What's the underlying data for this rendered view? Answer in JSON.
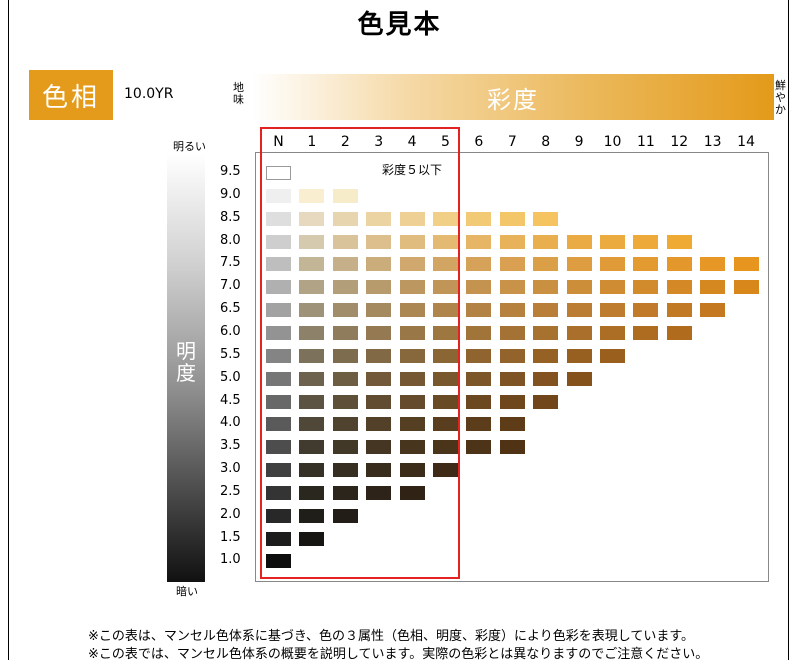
{
  "title": "色見本",
  "hue": {
    "label": "色相",
    "value": "10.0YR",
    "color": "#e49a1a"
  },
  "chroma": {
    "label": "彩度",
    "dull": "地味",
    "vivid": "鮮やか"
  },
  "value": {
    "label": "明度",
    "bright": "明るい",
    "dark": "暗い"
  },
  "highlight": {
    "label": "彩度５以下",
    "color": "#e52222"
  },
  "columns": [
    "N",
    "1",
    "2",
    "3",
    "4",
    "5",
    "6",
    "7",
    "8",
    "9",
    "10",
    "11",
    "12",
    "13",
    "14"
  ],
  "rows": [
    {
      "label": "9.5",
      "chips": [
        "#ffffff"
      ]
    },
    {
      "label": "9.0",
      "chips": [
        "#efefef",
        "#faeed0",
        "#f7ecca"
      ]
    },
    {
      "label": "8.5",
      "chips": [
        "#dedede",
        "#e6d9bf",
        "#e7d5b0",
        "#ebd3a2",
        "#eed094",
        "#f1cf87",
        "#f2ca76",
        "#f3c66a",
        "#f5c35f"
      ]
    },
    {
      "label": "8.0",
      "chips": [
        "#cecece",
        "#d6caae",
        "#d8c39b",
        "#dcbf8c",
        "#e0bc7e",
        "#e4b972",
        "#e6b566",
        "#e8b25a",
        "#e9ae4e",
        "#eaaa44",
        "#ecab3f",
        "#eda93a",
        "#eeaa33"
      ]
    },
    {
      "label": "7.5",
      "chips": [
        "#bebebe",
        "#c2b696",
        "#c5b08a",
        "#cbad7c",
        "#d0a86e",
        "#d3a563",
        "#d6a259",
        "#d8a050",
        "#db9f48",
        "#de9d40",
        "#e09b38",
        "#e29a31",
        "#e4982b",
        "#e69726",
        "#e7951f"
      ]
    },
    {
      "label": "7.0",
      "chips": [
        "#b0b0b0",
        "#b0a386",
        "#b39e7a",
        "#b89b6c",
        "#bd9760",
        "#c19557",
        "#c59350",
        "#c89248",
        "#ca9041",
        "#cd8e39",
        "#cf8c33",
        "#d28b2c",
        "#d48926",
        "#d68820",
        "#d8871a"
      ]
    },
    {
      "label": "6.5",
      "chips": [
        "#a2a2a2",
        "#9e9278",
        "#a18d6a",
        "#a68a5f",
        "#ab8754",
        "#af854b",
        "#b38345",
        "#b6813f",
        "#b97f39",
        "#bb7d33",
        "#be7c2e",
        "#c07a29",
        "#c27924",
        "#c4781f"
      ]
    },
    {
      "label": "6.0",
      "chips": [
        "#939393",
        "#8d8169",
        "#8f7c5c",
        "#947952",
        "#997747",
        "#9d7640",
        "#a1743a",
        "#a47234",
        "#a7712f",
        "#aa6f2a",
        "#ac6e25",
        "#ae6c21",
        "#b06b1d"
      ]
    },
    {
      "label": "5.5",
      "chips": [
        "#848484",
        "#7c715b",
        "#7e6c4f",
        "#826945",
        "#87673c",
        "#8b6635",
        "#8f642f",
        "#92632a",
        "#956125",
        "#976020",
        "#9a5f1c"
      ]
    },
    {
      "label": "5.0",
      "chips": [
        "#767676",
        "#6c624e",
        "#6d5e43",
        "#71593a",
        "#755833",
        "#79572d",
        "#7c5528",
        "#7f5424",
        "#825320",
        "#85521b"
      ]
    },
    {
      "label": "4.5",
      "chips": [
        "#686868",
        "#5d5343",
        "#5e4f39",
        "#614c31",
        "#654b2b",
        "#684a25",
        "#6b4820",
        "#6e471c",
        "#71461a"
      ]
    },
    {
      "label": "4.0",
      "chips": [
        "#5a5a5a",
        "#4f4738",
        "#4f4330",
        "#524029",
        "#553f23",
        "#583e1f",
        "#5b3d1b",
        "#5e3c18"
      ]
    },
    {
      "label": "3.5",
      "chips": [
        "#4d4d4d",
        "#413b2f",
        "#423828",
        "#443622",
        "#47351e",
        "#4a341a",
        "#4d3317",
        "#503215"
      ]
    },
    {
      "label": "3.0",
      "chips": [
        "#404040",
        "#353126",
        "#362e21",
        "#382c1c",
        "#3b2b19",
        "#3e2a16"
      ]
    },
    {
      "label": "2.5",
      "chips": [
        "#343434",
        "#2a271f",
        "#2b251b",
        "#2d2318",
        "#302215"
      ]
    },
    {
      "label": "2.0",
      "chips": [
        "#282828",
        "#201e19",
        "#221d16"
      ]
    },
    {
      "label": "1.5",
      "chips": [
        "#1c1c1c",
        "#171511"
      ]
    },
    {
      "label": "1.0",
      "chips": [
        "#0d0d0d"
      ]
    }
  ],
  "notes": [
    "※この表は、マンセル色体系に基づき、色の３属性（色相、明度、彩度）により色彩を表現しています。",
    "※この表では、マンセル色体系の概要を説明しています。実際の色彩とは異なりますのでご注意ください。"
  ]
}
